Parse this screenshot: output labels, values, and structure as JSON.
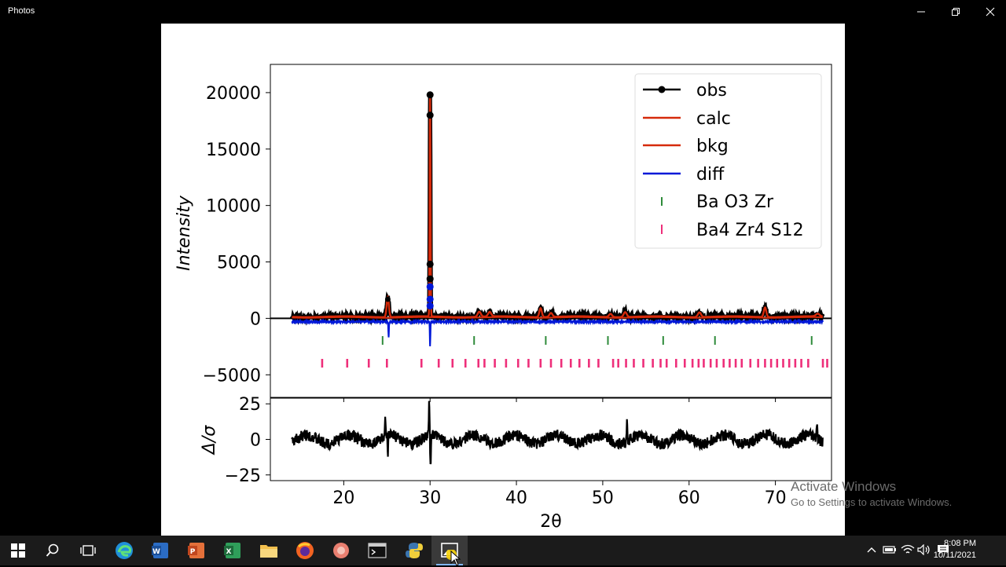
{
  "window": {
    "title": "Photos"
  },
  "watermark": {
    "line1": "Activate Windows",
    "line2": "Go to Settings to activate Windows."
  },
  "clock": {
    "time": "8:08 PM",
    "date": "10/11/2021"
  },
  "taskbar": {
    "items": [
      "start-icon",
      "search-icon",
      "task-view-icon",
      "edge-icon",
      "word-icon",
      "powerpoint-icon",
      "excel-icon",
      "file-explorer-icon",
      "firefox-icon",
      "app-icon",
      "terminal-icon",
      "python-icon",
      "photos-icon"
    ]
  },
  "colors": {
    "obs": "#000000",
    "calc": "#d62a0a",
    "bkg": "#d62a0a",
    "diff": "#0018d8",
    "phase1": "#2e8b3a",
    "phase2": "#ee2f7a"
  },
  "chart_data": {
    "type": "line",
    "xlabel": "2θ",
    "ylabel": "Intensity",
    "ylabel2": "Δ/σ",
    "xlim": [
      11.5,
      76.5
    ],
    "ylim": [
      -7000,
      22500
    ],
    "ylim2": [
      -29,
      29
    ],
    "xticks": [
      "20",
      "30",
      "40",
      "50",
      "60",
      "70"
    ],
    "yticks": [
      "20000",
      "15000",
      "10000",
      "5000",
      "0",
      "−5000"
    ],
    "yticks2": [
      "25",
      "0",
      "−25"
    ],
    "legend": {
      "placement": "top-right",
      "entries": [
        "obs",
        "calc",
        "bkg",
        "diff",
        "Ba O3 Zr",
        "Ba4 Zr4 S12"
      ]
    },
    "peaks": [
      [
        25.1,
        1800,
        0.18
      ],
      [
        30.0,
        19800,
        0.07
      ],
      [
        35.7,
        450,
        0.25
      ],
      [
        36.9,
        400,
        0.25
      ],
      [
        42.8,
        800,
        0.2
      ],
      [
        44.0,
        350,
        0.25
      ],
      [
        50.9,
        280,
        0.25
      ],
      [
        52.6,
        430,
        0.25
      ],
      [
        61.2,
        420,
        0.25
      ],
      [
        68.8,
        850,
        0.2
      ],
      [
        74.9,
        230,
        0.3
      ]
    ],
    "obs_points_near_peak": [
      19800,
      18000,
      4800,
      3500,
      2800,
      1700,
      1100
    ],
    "phase1_ticks": [
      24.5,
      35.1,
      43.4,
      50.6,
      57.0,
      63.0,
      74.2
    ],
    "phase2_ticks": [
      17.5,
      20.4,
      22.9,
      25.0,
      29.0,
      31.0,
      32.6,
      34.1,
      35.6,
      36.3,
      37.5,
      38.8,
      40.2,
      41.4,
      42.8,
      44.0,
      45.2,
      46.3,
      47.3,
      48.4,
      49.5,
      51.2,
      51.8,
      52.7,
      53.6,
      54.7,
      55.8,
      56.7,
      57.4,
      58.5,
      59.5,
      60.4,
      61.1,
      61.7,
      62.5,
      63.2,
      64.0,
      64.7,
      65.4,
      66.1,
      67.1,
      68.0,
      68.8,
      69.5,
      70.2,
      70.9,
      71.6,
      72.3,
      73.0,
      73.8,
      75.5,
      76.0
    ],
    "diff_baseline": -300,
    "diff_spikes": [
      [
        25.2,
        -1400
      ],
      [
        30.0,
        -2200
      ]
    ],
    "residual_features": [
      [
        24.8,
        10
      ],
      [
        25.1,
        -15
      ],
      [
        29.9,
        26
      ],
      [
        30.05,
        -25
      ],
      [
        52.8,
        12
      ],
      [
        74.8,
        11
      ]
    ]
  }
}
